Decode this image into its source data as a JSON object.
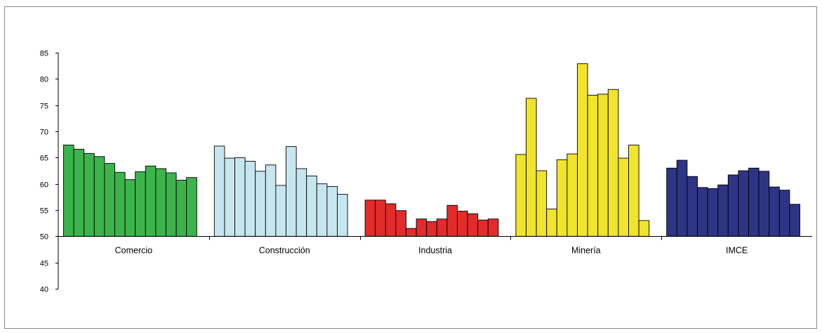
{
  "chart_data": {
    "type": "bar",
    "title": "",
    "xlabel": "",
    "ylabel": "",
    "ylim": [
      40,
      85
    ],
    "yticks": [
      40,
      45,
      50,
      55,
      60,
      65,
      70,
      75,
      80,
      85
    ],
    "baseline": 50,
    "grid": false,
    "groups": [
      {
        "category": "Comercio",
        "color": "#3cb44b",
        "values": [
          67.4,
          66.6,
          65.8,
          65.2,
          63.9,
          62.2,
          60.8,
          62.3,
          63.4,
          62.9,
          62.1,
          60.7,
          61.2
        ]
      },
      {
        "category": "Construcción",
        "color": "#c6e6ef",
        "values": [
          67.2,
          64.9,
          65.0,
          64.3,
          62.4,
          63.6,
          59.7,
          67.1,
          62.9,
          61.5,
          60.0,
          59.5,
          58.0
        ]
      },
      {
        "category": "Industria",
        "color": "#e32b2b",
        "values": [
          56.9,
          56.9,
          56.2,
          54.9,
          51.5,
          53.3,
          52.8,
          53.3,
          55.9,
          54.8,
          54.3,
          53.1,
          53.3
        ]
      },
      {
        "category": "Minería",
        "color": "#f0e42c",
        "values": [
          65.6,
          76.3,
          62.5,
          55.2,
          64.6,
          65.7,
          82.9,
          76.9,
          77.1,
          78.0,
          64.9,
          67.4,
          53.0
        ]
      },
      {
        "category": "IMCE",
        "color": "#2e3584",
        "values": [
          63.0,
          64.5,
          61.4,
          59.3,
          59.1,
          59.8,
          61.7,
          62.5,
          63.0,
          62.4,
          59.4,
          58.8,
          56.1
        ]
      }
    ]
  }
}
